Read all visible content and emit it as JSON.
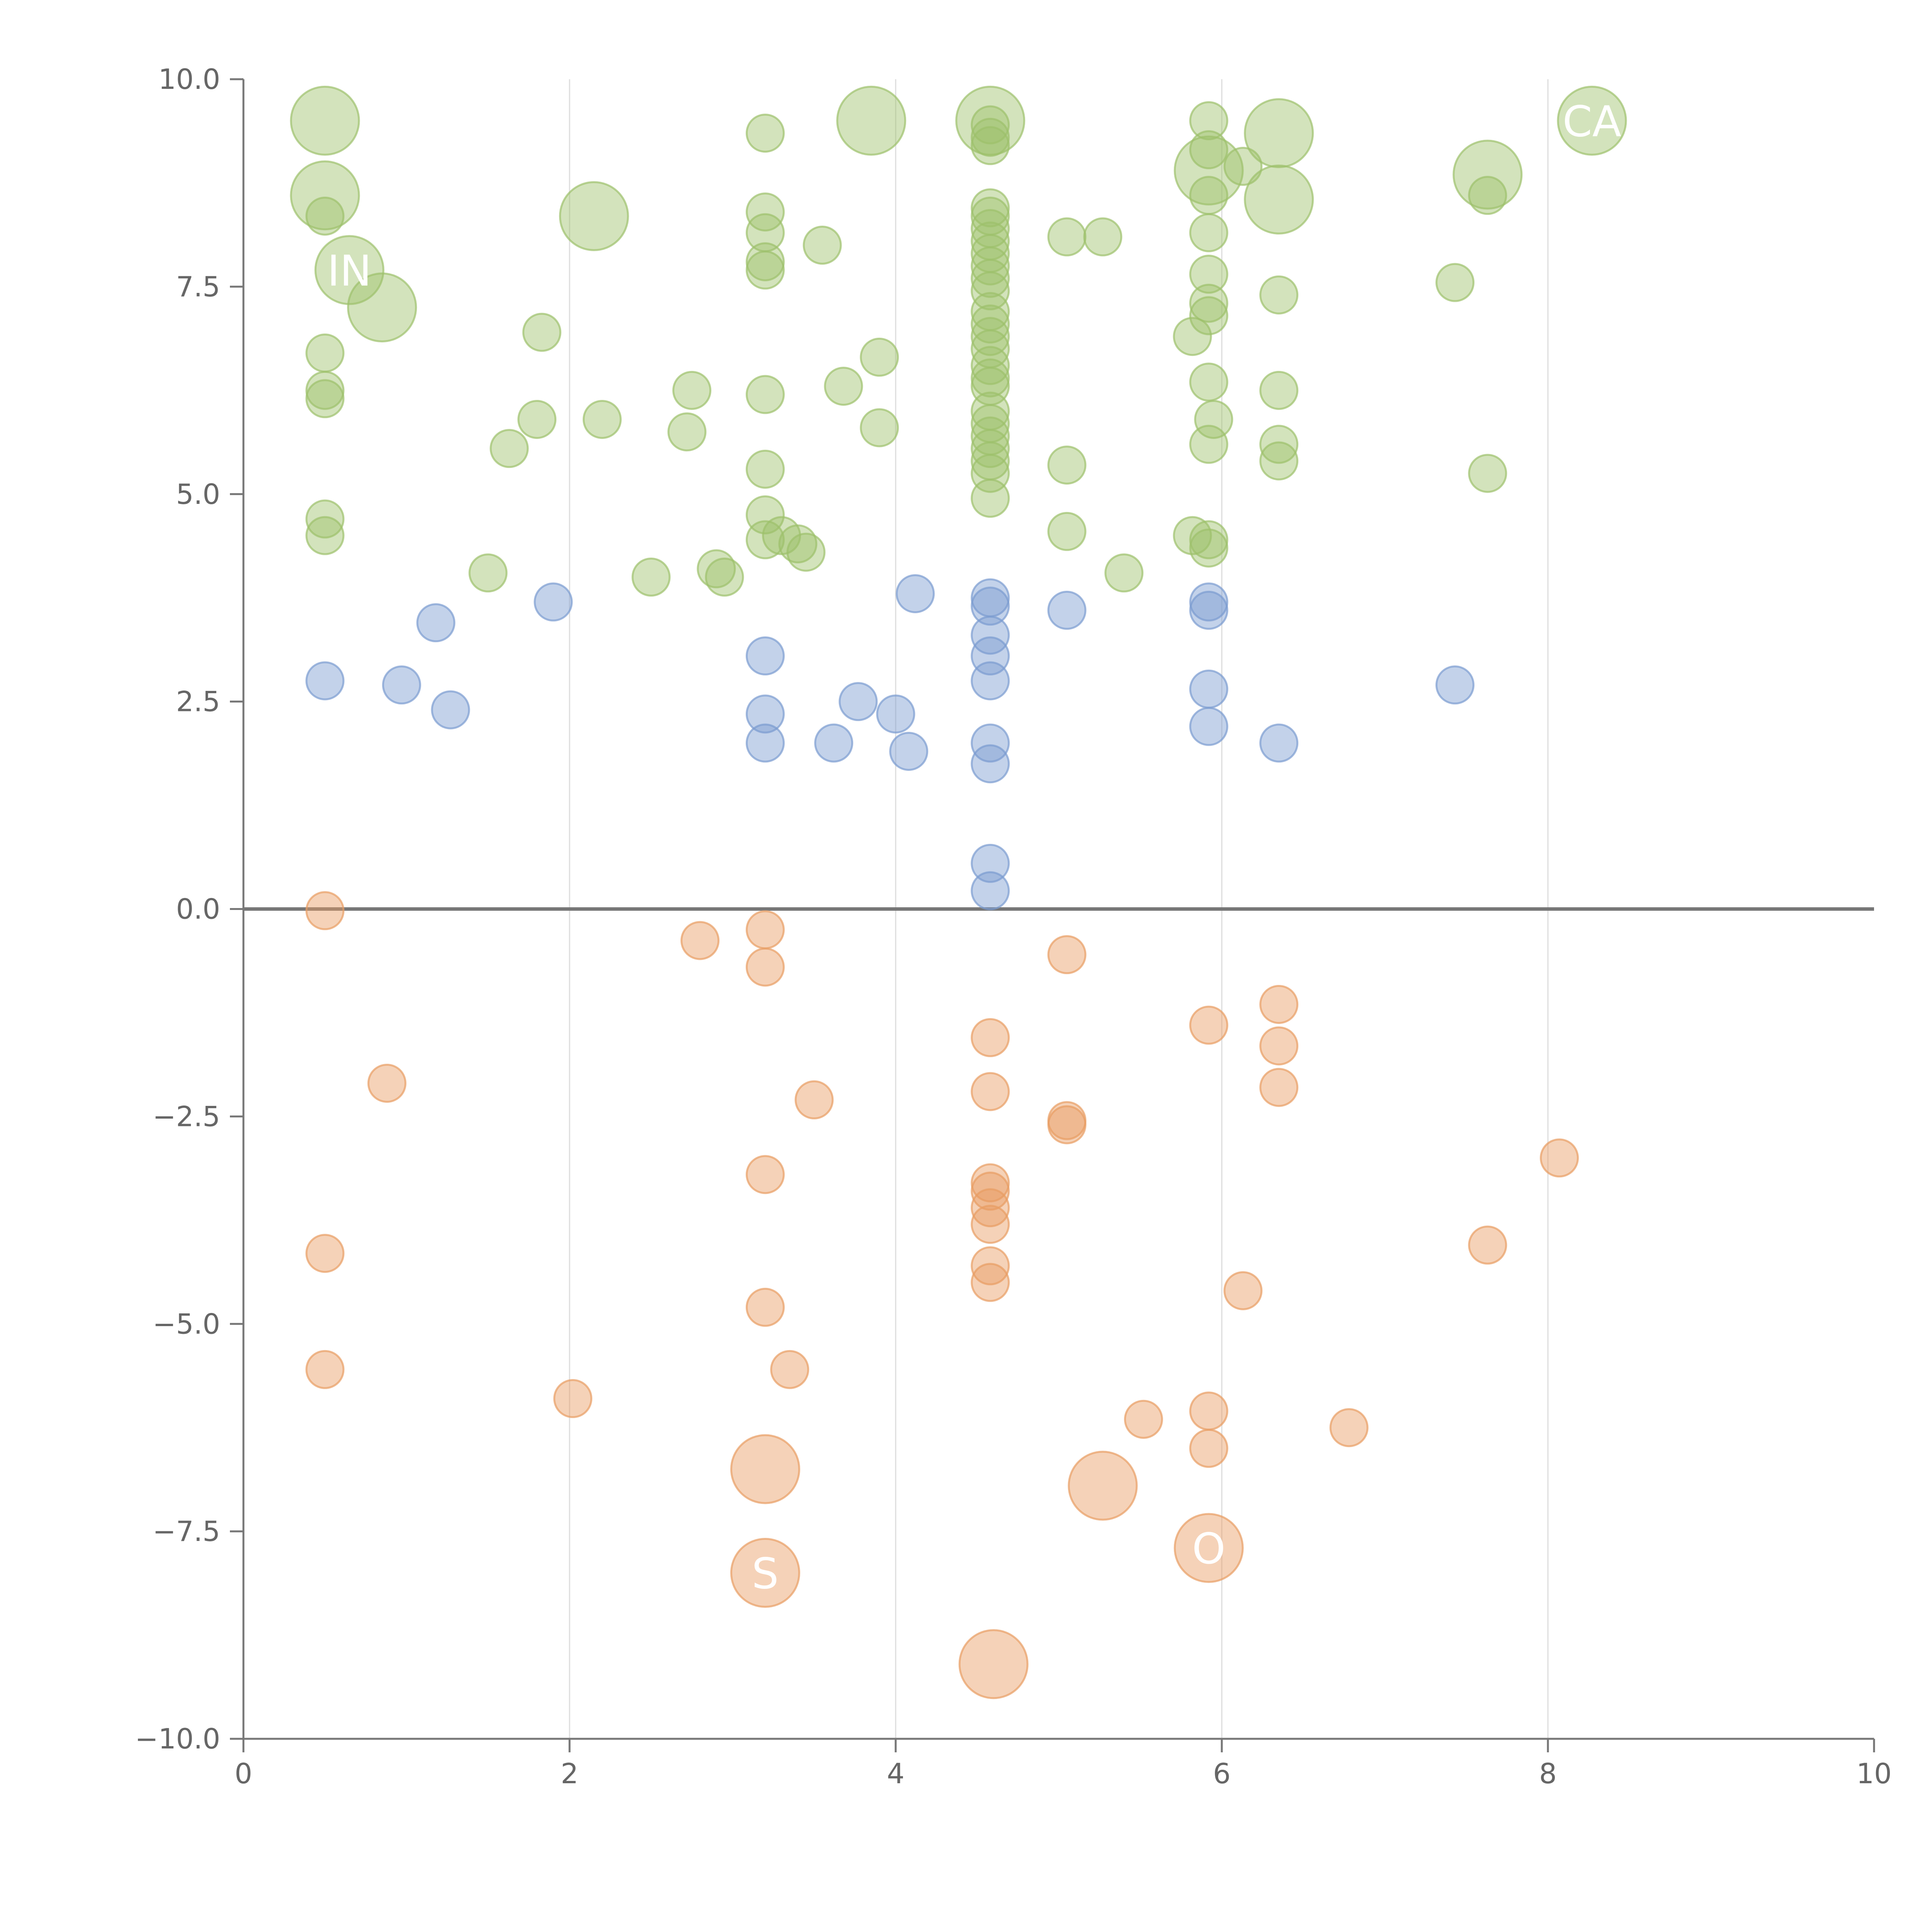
{
  "chart_data": {
    "type": "scatter",
    "title": "",
    "xlabel": "",
    "ylabel": "",
    "xlim": [
      0,
      10
    ],
    "ylim": [
      -10,
      10
    ],
    "x_ticks": [
      0,
      2,
      4,
      6,
      8,
      10
    ],
    "y_ticks": [
      10,
      7.5,
      5,
      2.5,
      0,
      -2.5,
      -5,
      -7.5,
      -10
    ],
    "x_tick_labels": [
      "0",
      "2",
      "4",
      "6",
      "8",
      "10"
    ],
    "y_tick_labels": [
      "10.0",
      "7.5",
      "5.0",
      "2.5",
      "0.0",
      "−2.5",
      "−5.0",
      "−7.5",
      "−10.0"
    ],
    "grid": {
      "vertical": true,
      "horizontal": false
    },
    "zero_line": 0,
    "legend": "none",
    "series": [
      {
        "color": "#9dc16b",
        "points": [
          {
            "x": 0.5,
            "y": 9.5,
            "size": "large"
          },
          {
            "x": 0.5,
            "y": 8.6,
            "size": "large"
          },
          {
            "x": 0.65,
            "y": 7.7,
            "size": "large",
            "label": "IN"
          },
          {
            "x": 0.85,
            "y": 7.25,
            "size": "large"
          },
          {
            "x": 2.15,
            "y": 8.35,
            "size": "large"
          },
          {
            "x": 3.85,
            "y": 9.5,
            "size": "large"
          },
          {
            "x": 4.58,
            "y": 9.5,
            "size": "large"
          },
          {
            "x": 5.92,
            "y": 8.9,
            "size": "large"
          },
          {
            "x": 6.35,
            "y": 9.35,
            "size": "large"
          },
          {
            "x": 6.35,
            "y": 8.55,
            "size": "large"
          },
          {
            "x": 7.63,
            "y": 8.85,
            "size": "large"
          },
          {
            "x": 8.27,
            "y": 9.5,
            "size": "large",
            "label": "CA"
          },
          {
            "x": 0.5,
            "y": 8.35
          },
          {
            "x": 0.5,
            "y": 6.7
          },
          {
            "x": 0.5,
            "y": 6.25
          },
          {
            "x": 0.5,
            "y": 6.15
          },
          {
            "x": 0.5,
            "y": 4.7
          },
          {
            "x": 0.5,
            "y": 4.5
          },
          {
            "x": 1.5,
            "y": 4.05
          },
          {
            "x": 1.63,
            "y": 5.55
          },
          {
            "x": 1.8,
            "y": 5.9
          },
          {
            "x": 1.83,
            "y": 6.95
          },
          {
            "x": 2.2,
            "y": 5.9
          },
          {
            "x": 2.5,
            "y": 4.0
          },
          {
            "x": 2.72,
            "y": 5.75
          },
          {
            "x": 2.75,
            "y": 6.25
          },
          {
            "x": 2.9,
            "y": 4.1
          },
          {
            "x": 2.95,
            "y": 4.0
          },
          {
            "x": 3.2,
            "y": 9.35
          },
          {
            "x": 3.2,
            "y": 8.4
          },
          {
            "x": 3.2,
            "y": 8.15
          },
          {
            "x": 3.2,
            "y": 7.8
          },
          {
            "x": 3.2,
            "y": 7.7
          },
          {
            "x": 3.2,
            "y": 6.2
          },
          {
            "x": 3.2,
            "y": 5.3
          },
          {
            "x": 3.2,
            "y": 4.75
          },
          {
            "x": 3.2,
            "y": 4.45
          },
          {
            "x": 3.3,
            "y": 4.5
          },
          {
            "x": 3.4,
            "y": 4.4
          },
          {
            "x": 3.45,
            "y": 4.3
          },
          {
            "x": 3.55,
            "y": 8.0
          },
          {
            "x": 3.68,
            "y": 6.3
          },
          {
            "x": 3.9,
            "y": 6.65
          },
          {
            "x": 3.9,
            "y": 5.8
          },
          {
            "x": 4.58,
            "y": 9.45
          },
          {
            "x": 4.58,
            "y": 9.3
          },
          {
            "x": 4.58,
            "y": 9.2
          },
          {
            "x": 4.58,
            "y": 8.45
          },
          {
            "x": 4.58,
            "y": 8.35
          },
          {
            "x": 4.58,
            "y": 8.2
          },
          {
            "x": 4.58,
            "y": 8.05
          },
          {
            "x": 4.58,
            "y": 7.9
          },
          {
            "x": 4.58,
            "y": 7.75
          },
          {
            "x": 4.58,
            "y": 7.6
          },
          {
            "x": 4.58,
            "y": 7.45
          },
          {
            "x": 4.58,
            "y": 7.2
          },
          {
            "x": 4.58,
            "y": 7.05
          },
          {
            "x": 4.58,
            "y": 6.9
          },
          {
            "x": 4.58,
            "y": 6.75
          },
          {
            "x": 4.58,
            "y": 6.55
          },
          {
            "x": 4.58,
            "y": 6.4
          },
          {
            "x": 4.58,
            "y": 6.3
          },
          {
            "x": 4.58,
            "y": 6.0
          },
          {
            "x": 4.58,
            "y": 5.85
          },
          {
            "x": 4.58,
            "y": 5.7
          },
          {
            "x": 4.58,
            "y": 5.55
          },
          {
            "x": 4.58,
            "y": 5.4
          },
          {
            "x": 4.58,
            "y": 5.25
          },
          {
            "x": 4.58,
            "y": 4.95
          },
          {
            "x": 5.05,
            "y": 8.1
          },
          {
            "x": 5.27,
            "y": 8.1
          },
          {
            "x": 5.05,
            "y": 5.35
          },
          {
            "x": 5.05,
            "y": 4.55
          },
          {
            "x": 5.4,
            "y": 4.05
          },
          {
            "x": 5.82,
            "y": 6.9
          },
          {
            "x": 5.82,
            "y": 4.5
          },
          {
            "x": 5.92,
            "y": 9.5
          },
          {
            "x": 5.92,
            "y": 9.15
          },
          {
            "x": 5.92,
            "y": 8.6
          },
          {
            "x": 5.92,
            "y": 8.15
          },
          {
            "x": 5.92,
            "y": 7.65
          },
          {
            "x": 5.92,
            "y": 7.3
          },
          {
            "x": 5.92,
            "y": 7.15
          },
          {
            "x": 5.92,
            "y": 6.35
          },
          {
            "x": 5.92,
            "y": 5.6
          },
          {
            "x": 5.95,
            "y": 5.9
          },
          {
            "x": 5.92,
            "y": 4.45
          },
          {
            "x": 5.92,
            "y": 4.35
          },
          {
            "x": 6.13,
            "y": 8.95
          },
          {
            "x": 6.35,
            "y": 7.4
          },
          {
            "x": 6.35,
            "y": 6.25
          },
          {
            "x": 6.35,
            "y": 5.6
          },
          {
            "x": 6.35,
            "y": 5.4
          },
          {
            "x": 7.43,
            "y": 7.55
          },
          {
            "x": 7.63,
            "y": 8.6
          },
          {
            "x": 7.63,
            "y": 5.25
          }
        ]
      },
      {
        "color": "#7b9bd0",
        "points": [
          {
            "x": 0.5,
            "y": 2.75
          },
          {
            "x": 0.97,
            "y": 2.7
          },
          {
            "x": 1.18,
            "y": 3.45
          },
          {
            "x": 1.27,
            "y": 2.4
          },
          {
            "x": 1.9,
            "y": 3.7
          },
          {
            "x": 3.2,
            "y": 3.05
          },
          {
            "x": 3.2,
            "y": 2.35
          },
          {
            "x": 3.2,
            "y": 2.0
          },
          {
            "x": 3.62,
            "y": 2.0
          },
          {
            "x": 3.77,
            "y": 2.5
          },
          {
            "x": 4.0,
            "y": 2.35
          },
          {
            "x": 4.08,
            "y": 1.9
          },
          {
            "x": 4.12,
            "y": 3.8
          },
          {
            "x": 4.58,
            "y": 3.75
          },
          {
            "x": 4.58,
            "y": 3.65
          },
          {
            "x": 4.58,
            "y": 3.3
          },
          {
            "x": 4.58,
            "y": 3.05
          },
          {
            "x": 4.58,
            "y": 2.75
          },
          {
            "x": 4.58,
            "y": 2.0
          },
          {
            "x": 4.58,
            "y": 1.75
          },
          {
            "x": 4.58,
            "y": 0.55
          },
          {
            "x": 4.58,
            "y": 0.22
          },
          {
            "x": 5.05,
            "y": 3.6
          },
          {
            "x": 5.92,
            "y": 3.7
          },
          {
            "x": 5.92,
            "y": 3.6
          },
          {
            "x": 5.92,
            "y": 2.65
          },
          {
            "x": 5.92,
            "y": 2.2
          },
          {
            "x": 6.35,
            "y": 2.0
          },
          {
            "x": 7.43,
            "y": 2.7
          }
        ]
      },
      {
        "color": "#e89c62",
        "points": [
          {
            "x": 0.5,
            "y": -0.02
          },
          {
            "x": 0.5,
            "y": -4.15
          },
          {
            "x": 0.5,
            "y": -5.55
          },
          {
            "x": 0.88,
            "y": -2.1
          },
          {
            "x": 2.02,
            "y": -5.9
          },
          {
            "x": 2.8,
            "y": -0.38
          },
          {
            "x": 3.2,
            "y": -0.25
          },
          {
            "x": 3.2,
            "y": -0.7
          },
          {
            "x": 3.2,
            "y": -3.2
          },
          {
            "x": 3.2,
            "y": -4.8
          },
          {
            "x": 3.35,
            "y": -5.55
          },
          {
            "x": 3.5,
            "y": -2.3
          },
          {
            "x": 4.58,
            "y": -1.55
          },
          {
            "x": 4.58,
            "y": -2.2
          },
          {
            "x": 4.58,
            "y": -3.3
          },
          {
            "x": 4.58,
            "y": -3.4
          },
          {
            "x": 4.58,
            "y": -3.6
          },
          {
            "x": 4.58,
            "y": -3.8
          },
          {
            "x": 4.58,
            "y": -4.3
          },
          {
            "x": 4.58,
            "y": -4.5
          },
          {
            "x": 5.05,
            "y": -0.55
          },
          {
            "x": 5.05,
            "y": -2.55
          },
          {
            "x": 5.05,
            "y": -2.6
          },
          {
            "x": 5.52,
            "y": -6.15
          },
          {
            "x": 5.92,
            "y": -1.4
          },
          {
            "x": 5.92,
            "y": -6.05
          },
          {
            "x": 5.92,
            "y": -6.5
          },
          {
            "x": 6.13,
            "y": -4.6
          },
          {
            "x": 6.35,
            "y": -1.15
          },
          {
            "x": 6.35,
            "y": -1.65
          },
          {
            "x": 6.35,
            "y": -2.15
          },
          {
            "x": 6.78,
            "y": -6.25
          },
          {
            "x": 7.63,
            "y": -4.05
          },
          {
            "x": 8.07,
            "y": -3.0
          },
          {
            "x": 3.2,
            "y": -6.75,
            "size": "large"
          },
          {
            "x": 3.2,
            "y": -8.0,
            "size": "large",
            "label": "S"
          },
          {
            "x": 5.27,
            "y": -6.95,
            "size": "large"
          },
          {
            "x": 5.92,
            "y": -7.7,
            "size": "large",
            "label": "O"
          },
          {
            "x": 4.6,
            "y": -9.1,
            "size": "large"
          }
        ]
      }
    ]
  }
}
